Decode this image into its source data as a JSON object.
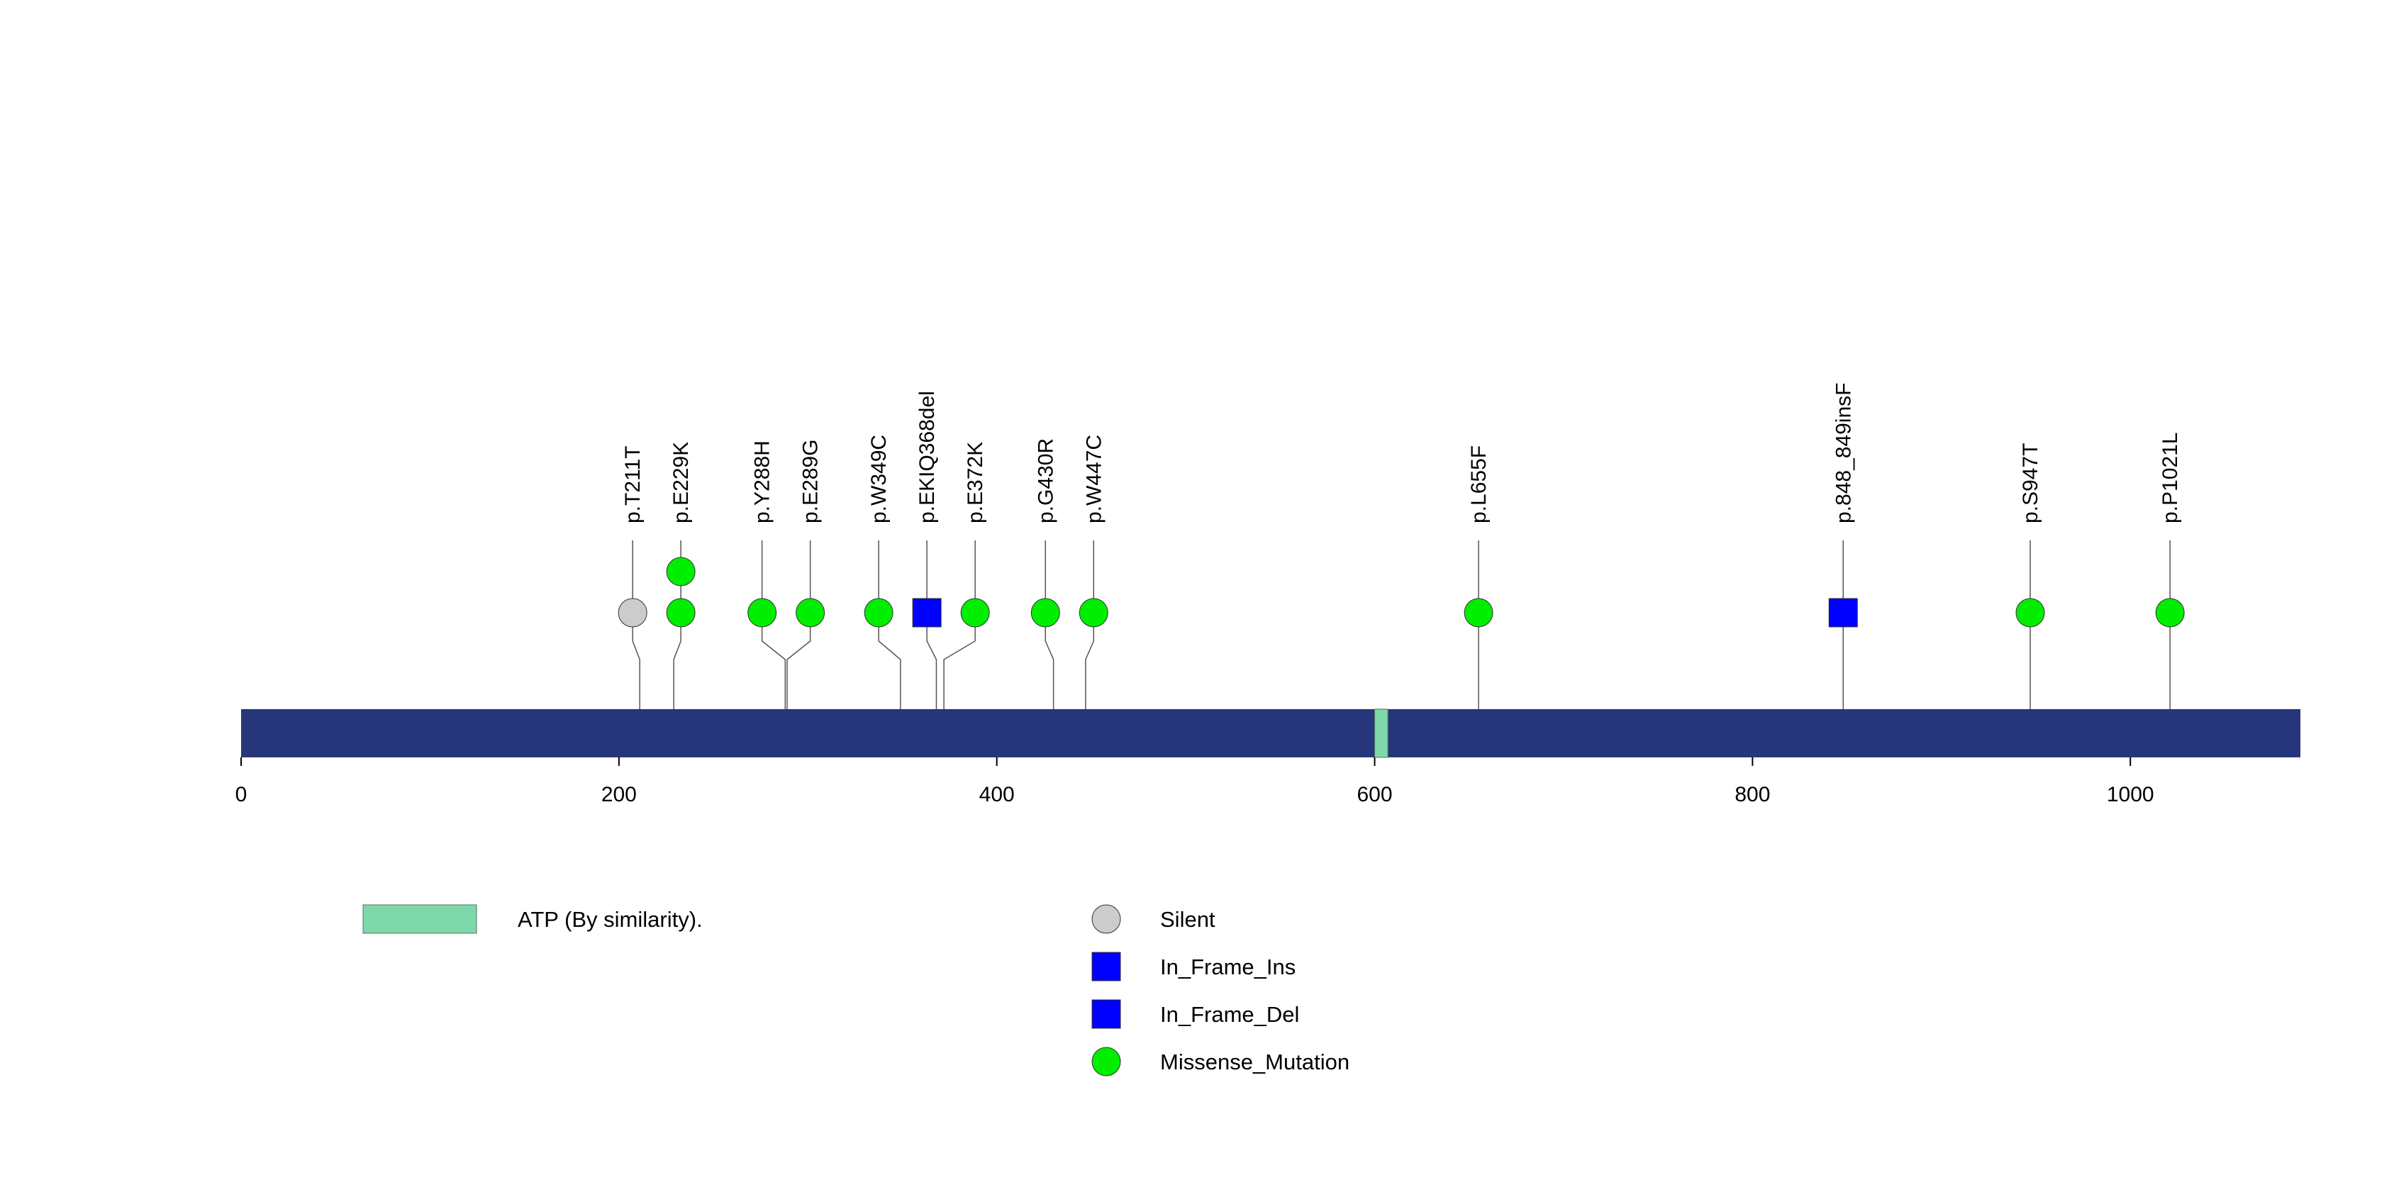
{
  "protein": {
    "length": 1090,
    "bar_color": "#27367a",
    "ticks": [
      0,
      200,
      400,
      600,
      800,
      1000
    ],
    "domains": [
      {
        "name": "ATP (By similarity).",
        "start": 600,
        "end": 607,
        "color": "#7fd8a9"
      }
    ]
  },
  "mutations": [
    {
      "label": "p.T211T",
      "pos": 211,
      "type": "Silent",
      "count": 1
    },
    {
      "label": "p.E229K",
      "pos": 229,
      "type": "Missense_Mutation",
      "count": 2
    },
    {
      "label": "p.Y288H",
      "pos": 288,
      "type": "Missense_Mutation",
      "count": 1
    },
    {
      "label": "p.E289G",
      "pos": 289,
      "type": "Missense_Mutation",
      "count": 1
    },
    {
      "label": "p.W349C",
      "pos": 349,
      "type": "Missense_Mutation",
      "count": 1
    },
    {
      "label": "p.EKIQ368del",
      "pos": 368,
      "type": "In_Frame_Del",
      "count": 1
    },
    {
      "label": "p.E372K",
      "pos": 372,
      "type": "Missense_Mutation",
      "count": 1
    },
    {
      "label": "p.G430R",
      "pos": 430,
      "type": "Missense_Mutation",
      "count": 1
    },
    {
      "label": "p.W447C",
      "pos": 447,
      "type": "Missense_Mutation",
      "count": 1
    },
    {
      "label": "p.L655F",
      "pos": 655,
      "type": "Missense_Mutation",
      "count": 1
    },
    {
      "label": "p.848_849insF",
      "pos": 848,
      "type": "In_Frame_Ins",
      "count": 1
    },
    {
      "label": "p.S947T",
      "pos": 947,
      "type": "Missense_Mutation",
      "count": 1
    },
    {
      "label": "p.P1021L",
      "pos": 1021,
      "type": "Missense_Mutation",
      "count": 1
    }
  ],
  "legend": {
    "domains": [
      {
        "label": "ATP (By similarity).",
        "color": "#7fd8a9"
      }
    ],
    "types": [
      {
        "label": "Silent",
        "shape": "circle",
        "color": "#cccccc"
      },
      {
        "label": "In_Frame_Ins",
        "shape": "square",
        "color": "#0000ff"
      },
      {
        "label": "In_Frame_Del",
        "shape": "square",
        "color": "#0000ff"
      },
      {
        "label": "Missense_Mutation",
        "shape": "circle",
        "color": "#00ee00"
      }
    ]
  }
}
